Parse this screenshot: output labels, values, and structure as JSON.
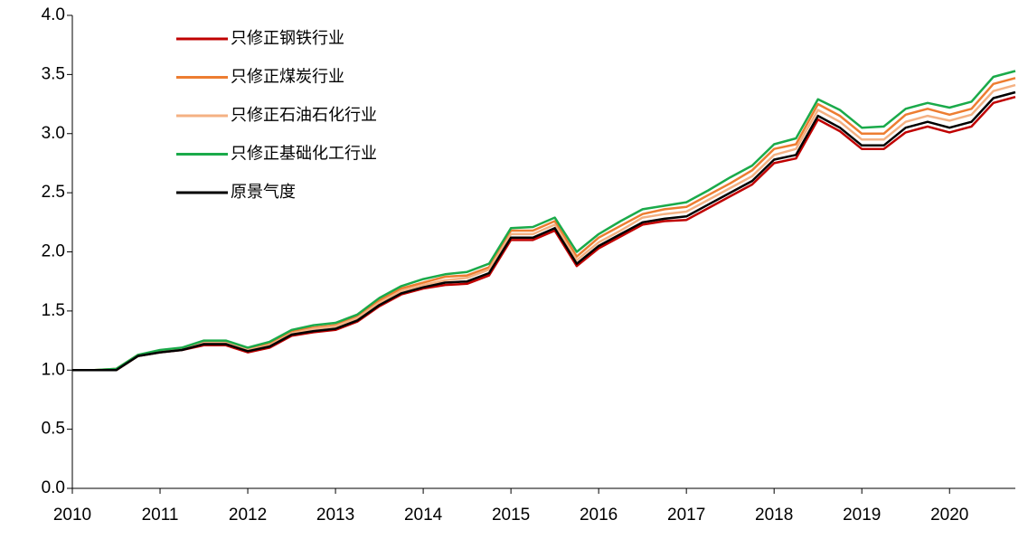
{
  "chart_data": {
    "type": "line",
    "x": [
      2010,
      2010.25,
      2010.5,
      2010.75,
      2011,
      2011.25,
      2011.5,
      2011.75,
      2012,
      2012.25,
      2012.5,
      2012.75,
      2013,
      2013.25,
      2013.5,
      2013.75,
      2014,
      2014.25,
      2014.5,
      2014.75,
      2015,
      2015.25,
      2015.5,
      2015.75,
      2016,
      2016.25,
      2016.5,
      2016.75,
      2017,
      2017.25,
      2017.5,
      2017.75,
      2018,
      2018.25,
      2018.5,
      2018.75,
      2019,
      2019.25,
      2019.5,
      2019.75,
      2020,
      2020.25,
      2020.5,
      2020.75
    ],
    "series": [
      {
        "name": "只修正钢铁行业",
        "color": "#c00000",
        "values": [
          1.0,
          1.0,
          1.0,
          1.12,
          1.15,
          1.17,
          1.21,
          1.21,
          1.15,
          1.19,
          1.29,
          1.32,
          1.34,
          1.41,
          1.54,
          1.64,
          1.69,
          1.72,
          1.73,
          1.8,
          2.1,
          2.1,
          2.18,
          1.88,
          2.03,
          2.13,
          2.23,
          2.26,
          2.27,
          2.37,
          2.47,
          2.57,
          2.75,
          2.79,
          3.12,
          3.02,
          2.87,
          2.87,
          3.01,
          3.06,
          3.01,
          3.06,
          3.26,
          3.31
        ]
      },
      {
        "name": "只修正煤炭行业",
        "color": "#ed7d31",
        "values": [
          1.0,
          1.0,
          1.01,
          1.13,
          1.16,
          1.18,
          1.24,
          1.24,
          1.18,
          1.23,
          1.33,
          1.36,
          1.38,
          1.46,
          1.59,
          1.69,
          1.74,
          1.79,
          1.8,
          1.87,
          2.18,
          2.18,
          2.26,
          1.96,
          2.12,
          2.22,
          2.32,
          2.36,
          2.38,
          2.48,
          2.58,
          2.69,
          2.87,
          2.91,
          3.25,
          3.15,
          3.0,
          3.0,
          3.16,
          3.21,
          3.16,
          3.21,
          3.42,
          3.47
        ]
      },
      {
        "name": "只修正石油石化行业",
        "color": "#f4b183",
        "values": [
          1.0,
          1.0,
          1.0,
          1.12,
          1.16,
          1.18,
          1.23,
          1.23,
          1.17,
          1.21,
          1.31,
          1.35,
          1.37,
          1.44,
          1.57,
          1.67,
          1.72,
          1.76,
          1.78,
          1.85,
          2.15,
          2.15,
          2.23,
          1.93,
          2.08,
          2.18,
          2.29,
          2.32,
          2.34,
          2.44,
          2.54,
          2.64,
          2.82,
          2.87,
          3.2,
          3.1,
          2.95,
          2.95,
          3.1,
          3.15,
          3.11,
          3.16,
          3.36,
          3.41
        ]
      },
      {
        "name": "只修正基础化工行业",
        "color": "#1aaa4a",
        "values": [
          1.0,
          1.0,
          1.01,
          1.13,
          1.17,
          1.19,
          1.25,
          1.25,
          1.19,
          1.24,
          1.34,
          1.38,
          1.4,
          1.47,
          1.61,
          1.71,
          1.77,
          1.81,
          1.83,
          1.9,
          2.2,
          2.21,
          2.29,
          2.0,
          2.15,
          2.26,
          2.36,
          2.39,
          2.42,
          2.52,
          2.63,
          2.73,
          2.91,
          2.96,
          3.29,
          3.2,
          3.05,
          3.06,
          3.21,
          3.26,
          3.22,
          3.27,
          3.48,
          3.53
        ]
      },
      {
        "name": "原景气度",
        "color": "#000000",
        "values": [
          1.0,
          1.0,
          1.0,
          1.12,
          1.15,
          1.17,
          1.22,
          1.22,
          1.16,
          1.2,
          1.3,
          1.33,
          1.35,
          1.42,
          1.55,
          1.65,
          1.7,
          1.74,
          1.75,
          1.82,
          2.12,
          2.12,
          2.2,
          1.9,
          2.05,
          2.15,
          2.25,
          2.28,
          2.3,
          2.4,
          2.5,
          2.6,
          2.78,
          2.82,
          3.15,
          3.05,
          2.9,
          2.9,
          3.05,
          3.1,
          3.05,
          3.1,
          3.3,
          3.35
        ]
      }
    ],
    "xlim": [
      2010,
      2020.75
    ],
    "xticks": [
      2010,
      2011,
      2012,
      2013,
      2014,
      2015,
      2016,
      2017,
      2018,
      2019,
      2020
    ],
    "ylim": [
      0,
      4
    ],
    "yticks": [
      {
        "value": 0,
        "label": "0.0"
      },
      {
        "value": 0.5,
        "label": "0.5"
      },
      {
        "value": 1,
        "label": "1.0"
      },
      {
        "value": 1.5,
        "label": "1.5"
      },
      {
        "value": 2,
        "label": "2.0"
      },
      {
        "value": 2.5,
        "label": "2.5"
      },
      {
        "value": 3,
        "label": "3.0"
      },
      {
        "value": 3.5,
        "label": "3.5"
      },
      {
        "value": 4,
        "label": "4.0"
      }
    ],
    "legend": "upper-left",
    "grid": false
  }
}
